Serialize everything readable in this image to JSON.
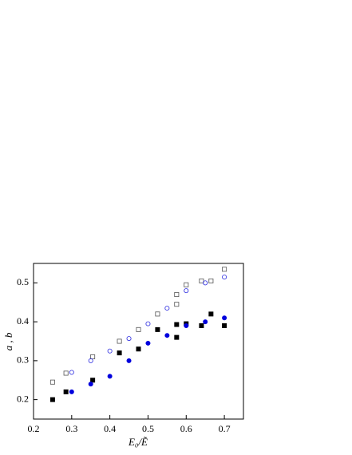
{
  "chart_data": {
    "type": "scatter",
    "x_label": "E₀/Ẽ",
    "y_label": "a , b",
    "xlim": [
      0.2,
      0.75
    ],
    "ylim": [
      0.15,
      0.55
    ],
    "xticks": [
      0.2,
      0.3,
      0.4,
      0.5,
      0.6,
      0.7
    ],
    "yticks": [
      0.2,
      0.3,
      0.4,
      0.5
    ],
    "series": [
      {
        "marker": "square",
        "filled": false,
        "color": "#555555",
        "x": [
          0.25,
          0.285,
          0.355,
          0.425,
          0.475,
          0.525,
          0.575,
          0.575,
          0.6,
          0.64,
          0.665,
          0.7
        ],
        "values": [
          0.245,
          0.268,
          0.31,
          0.35,
          0.38,
          0.42,
          0.445,
          0.47,
          0.495,
          0.505,
          0.505,
          0.535
        ]
      },
      {
        "marker": "circle",
        "filled": false,
        "color": "#2a2ae0",
        "x": [
          0.3,
          0.35,
          0.4,
          0.45,
          0.5,
          0.55,
          0.6,
          0.65,
          0.7
        ],
        "values": [
          0.27,
          0.3,
          0.325,
          0.357,
          0.395,
          0.435,
          0.48,
          0.5,
          0.515
        ]
      },
      {
        "marker": "square",
        "filled": true,
        "color": "#000000",
        "x": [
          0.25,
          0.285,
          0.355,
          0.425,
          0.475,
          0.525,
          0.575,
          0.575,
          0.6,
          0.64,
          0.665,
          0.7
        ],
        "values": [
          0.2,
          0.22,
          0.25,
          0.32,
          0.33,
          0.38,
          0.393,
          0.36,
          0.395,
          0.39,
          0.42,
          0.39
        ]
      },
      {
        "marker": "circle",
        "filled": true,
        "color": "#0000dd",
        "x": [
          0.3,
          0.35,
          0.4,
          0.45,
          0.5,
          0.55,
          0.6,
          0.65,
          0.7
        ],
        "values": [
          0.22,
          0.24,
          0.26,
          0.3,
          0.345,
          0.365,
          0.39,
          0.4,
          0.41
        ]
      }
    ]
  }
}
